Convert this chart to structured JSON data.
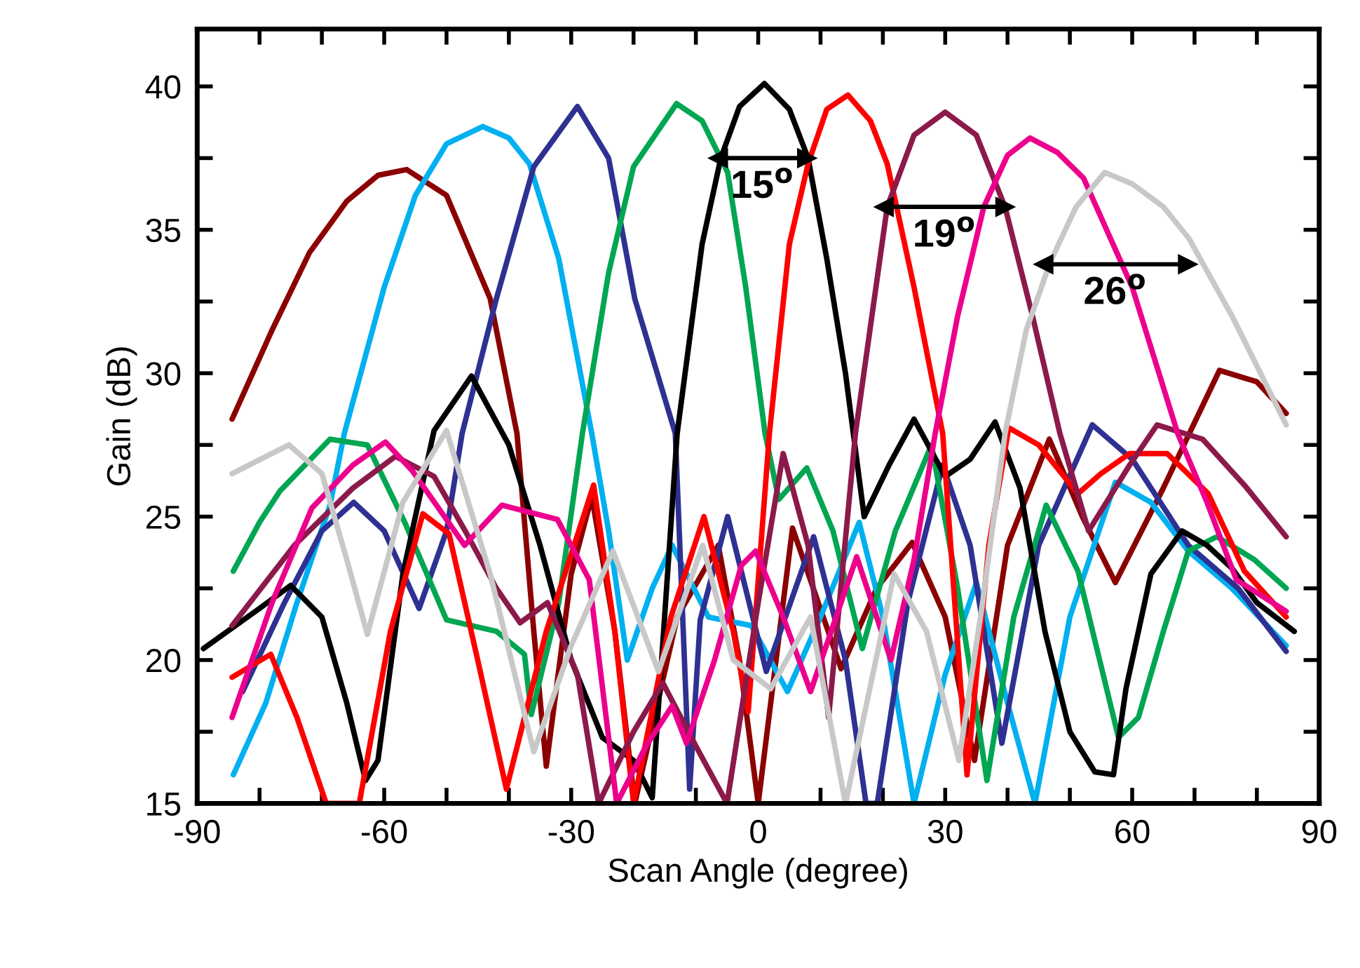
{
  "chart_data": {
    "type": "line",
    "xlabel": "Scan Angle (degree)",
    "ylabel": "Gain (dB)",
    "xlim": [
      -90,
      90
    ],
    "ylim": [
      15,
      42
    ],
    "xticks": [
      -90,
      {
        "value": -80,
        "label": null
      },
      {
        "value": -70,
        "label": null
      },
      -60,
      {
        "value": -50,
        "label": null
      },
      {
        "value": -40,
        "label": null
      },
      -30,
      {
        "value": -20,
        "label": null
      },
      {
        "value": -10,
        "label": null
      },
      0,
      {
        "value": 10,
        "label": null
      },
      {
        "value": 20,
        "label": null
      },
      30,
      {
        "value": 40,
        "label": null
      },
      {
        "value": 50,
        "label": null
      },
      60,
      {
        "value": 70,
        "label": null
      },
      {
        "value": 80,
        "label": null
      },
      90
    ],
    "yticks": [
      15,
      {
        "value": 17.5,
        "label": null
      },
      20,
      {
        "value": 22.5,
        "label": null
      },
      25,
      {
        "value": 27.5,
        "label": null
      },
      30,
      {
        "value": 32.5,
        "label": null
      },
      35,
      {
        "value": 37.5,
        "label": null
      },
      40
    ],
    "grid": false,
    "legend": false,
    "marker": "none",
    "line_style": "solid",
    "series": [
      {
        "color": "#8b0000",
        "x": [
          -84.4,
          -78,
          -72,
          -66,
          -61,
          -56.4,
          -50,
          -43,
          -38.7,
          -36,
          -34,
          -30,
          -26.7,
          -23,
          -19.8,
          -13,
          -6.4,
          -3,
          0,
          5.5,
          13.3,
          19,
          24.7,
          30,
          34.7,
          40,
          46.7,
          52,
          57.3,
          65,
          74,
          80,
          84.7
        ],
        "values": [
          28.4,
          31.5,
          34.2,
          36,
          36.9,
          37.1,
          36.2,
          32.6,
          27.9,
          21,
          16.3,
          23,
          25.7,
          21,
          15,
          21.5,
          24,
          20,
          15,
          24.6,
          19.7,
          22.5,
          24.1,
          21.5,
          16.5,
          24,
          27.7,
          25,
          22.7,
          26,
          30.1,
          29.7,
          28.6
        ]
      },
      {
        "color": "#00b0f0",
        "x": [
          -84.2,
          -79,
          -74,
          -68.7,
          -66.4,
          -60,
          -55,
          -50,
          -44.2,
          -40,
          -36.7,
          -32,
          -26.7,
          -24,
          -21,
          -17,
          -13.8,
          -8,
          -1.1,
          4.7,
          10,
          16.2,
          20,
          25,
          30,
          35,
          40,
          44.4,
          50,
          57.3,
          63,
          69,
          76,
          84.7
        ],
        "values": [
          16,
          18.5,
          22,
          25.4,
          27.9,
          33,
          36.2,
          38,
          38.6,
          38.2,
          37.3,
          34,
          27.9,
          24.5,
          20,
          22.5,
          24,
          21.5,
          21.2,
          18.9,
          21.5,
          24.8,
          21.5,
          15,
          19.5,
          22.7,
          18.5,
          15,
          21.5,
          26.2,
          25.5,
          23.8,
          22.5,
          20.5
        ]
      },
      {
        "color": "#2e3192",
        "x": [
          -82.7,
          -76,
          -70,
          -64.9,
          -60,
          -54.4,
          -50,
          -47.5,
          -42,
          -36,
          -29,
          -24,
          -19.8,
          -13.3,
          -11,
          -9.3,
          -4.9,
          1.3,
          8.9,
          14,
          17.3,
          19.1,
          24,
          29.6,
          34,
          39.1,
          45,
          53.6,
          60,
          69,
          77,
          84.7
        ],
        "values": [
          18.9,
          22,
          24.5,
          25.5,
          24.5,
          21.8,
          24.5,
          27.9,
          32.6,
          37.2,
          39.3,
          37.5,
          32.6,
          27.9,
          15.5,
          21.4,
          25,
          19.6,
          24.3,
          20,
          15,
          15,
          22,
          26.8,
          24,
          17.1,
          24,
          28.2,
          27,
          24,
          22.5,
          20.3
        ]
      },
      {
        "color": "#00a651",
        "x": [
          -84.2,
          -80,
          -76.7,
          -68.7,
          -62.7,
          -56.7,
          -50,
          -42,
          -37.5,
          -36.4,
          -32,
          -28.2,
          -24,
          -20,
          -13.1,
          -9,
          -4.9,
          -2,
          1.1,
          3.3,
          7.8,
          12,
          16.7,
          22,
          27.8,
          32,
          36.7,
          41,
          46.2,
          51.3,
          57.8,
          61,
          65,
          69,
          73.6,
          79.6,
          84.7
        ],
        "values": [
          23.1,
          24.8,
          25.9,
          27.7,
          27.5,
          24.8,
          21.4,
          21,
          20.2,
          18.1,
          22,
          27.9,
          33.5,
          37.2,
          39.4,
          38.8,
          37,
          33,
          27.9,
          25.6,
          26.7,
          24.5,
          20.4,
          24.5,
          27.5,
          22.5,
          15.8,
          21.5,
          25.4,
          23.1,
          17.3,
          18,
          21,
          23.8,
          24.3,
          23.5,
          22.5
        ]
      },
      {
        "color": "#000000",
        "x": [
          -89,
          -80,
          -75,
          -70,
          -66,
          -63,
          -61,
          -57,
          -52,
          -46,
          -40,
          -35,
          -30,
          -25,
          -20,
          -17,
          -13,
          -9,
          -6,
          -3,
          1,
          5,
          8,
          11,
          14,
          17,
          21,
          25,
          30,
          34,
          38,
          42,
          46,
          50,
          54,
          57,
          59,
          63,
          68,
          72,
          76,
          80,
          86
        ],
        "values": [
          20.4,
          21.8,
          22.6,
          21.5,
          18.5,
          15.8,
          16.5,
          23,
          28,
          29.9,
          27.5,
          24,
          20,
          17.3,
          16.5,
          15.2,
          27.9,
          34.5,
          37.5,
          39.3,
          40.1,
          39.2,
          37.5,
          34,
          30,
          25,
          26.8,
          28.4,
          26.4,
          27,
          28.3,
          26,
          21,
          17.5,
          16.1,
          16,
          19,
          23,
          24.5,
          24,
          23.2,
          22,
          21
        ]
      },
      {
        "color": "#ff0000",
        "x": [
          -84.4,
          -78.2,
          -74,
          -69.3,
          -64,
          -59,
          -53.8,
          -49.6,
          -45,
          -40.4,
          -34,
          -26.4,
          -23,
          -20,
          -14,
          -8.7,
          -4,
          -1.6,
          1.8,
          5,
          8,
          11,
          14.4,
          18,
          20.7,
          25,
          29.6,
          33.5,
          37,
          40.2,
          45,
          51.3,
          55,
          59.6,
          65.6,
          72.2,
          78,
          84.7
        ],
        "values": [
          19.4,
          20.2,
          18,
          15,
          15,
          21,
          25.1,
          24.4,
          20,
          15.5,
          21,
          26.1,
          21,
          15,
          21.5,
          25,
          21,
          18.2,
          27.9,
          34.5,
          37.3,
          39.2,
          39.7,
          38.8,
          37.3,
          33,
          27.9,
          16,
          24,
          28.1,
          27.5,
          25.8,
          26.5,
          27.2,
          27.2,
          25.8,
          23.1,
          21.5
        ]
      },
      {
        "color": "#8b1a4a",
        "x": [
          -84.4,
          -74.4,
          -65,
          -58.2,
          -52,
          -47,
          -42,
          -38.2,
          -33.8,
          -29,
          -25.6,
          -20,
          -15.3,
          -10,
          -5,
          0,
          4,
          8,
          11.3,
          15.6,
          20.7,
          25,
          30,
          35,
          39.6,
          44,
          48.4,
          53,
          59.6,
          64,
          71.3,
          78,
          84.7
        ],
        "values": [
          21.2,
          24,
          26,
          27.1,
          26.4,
          24.5,
          22.5,
          21.3,
          22,
          19.5,
          15,
          17.5,
          19.2,
          17,
          15,
          22,
          27.2,
          24,
          18,
          27.9,
          35.8,
          38.3,
          39.1,
          38.3,
          35.8,
          32,
          27.9,
          24.5,
          26.8,
          28.2,
          27.7,
          26.1,
          24.3
        ]
      },
      {
        "color": "#ec008c",
        "x": [
          -84.4,
          -78,
          -71.6,
          -65,
          -59.8,
          -55.5,
          -47.1,
          -41.1,
          -32.2,
          -27.1,
          -22.7,
          -18,
          -13.8,
          -11.5,
          -7,
          -2.7,
          -0.4,
          4,
          8.4,
          15.8,
          21.3,
          25,
          28.4,
          32,
          36.2,
          40,
          43.6,
          48,
          52.2,
          60,
          67.3,
          72,
          76.7,
          84.7
        ],
        "values": [
          18,
          22,
          25.3,
          26.8,
          27.6,
          26.6,
          24,
          25.4,
          24.9,
          22.8,
          15,
          17,
          18.4,
          17.1,
          20,
          23.3,
          23.8,
          21.5,
          18.9,
          23.6,
          20,
          23.5,
          27.9,
          32,
          35.8,
          37.6,
          38.2,
          37.7,
          36.8,
          33,
          27.9,
          25.5,
          22.8,
          21.7
        ]
      },
      {
        "color": "#c8c8c8",
        "x": [
          -84.4,
          -75.3,
          -70,
          -66,
          -62.7,
          -57,
          -50,
          -43,
          -36,
          -30,
          -23.3,
          -16,
          -8.9,
          -4,
          2,
          8.4,
          14,
          21.8,
          27,
          32.2,
          36,
          39.6,
          43,
          46.9,
          51,
          55.6,
          60,
          65,
          69.1,
          76,
          84.7
        ],
        "values": [
          26.5,
          27.5,
          26.5,
          23.5,
          20.9,
          25.5,
          28,
          23,
          16.8,
          20.5,
          23.8,
          19.6,
          24,
          20,
          19,
          21.5,
          15,
          23,
          21,
          16.5,
          22,
          27.9,
          31.5,
          33.9,
          35.8,
          37,
          36.6,
          35.8,
          34.7,
          32,
          28.2
        ]
      },
      {
        "color": "#000000",
        "marker": "triangle",
        "x": [
          -6.4,
          7.8
        ],
        "values": [
          37.5,
          37.5
        ]
      },
      {
        "color": "#000000",
        "marker": "triangle",
        "x": [
          20.2,
          39.6
        ],
        "values": [
          35.8,
          35.8
        ]
      },
      {
        "color": "#000000",
        "marker": "triangle",
        "x": [
          45.8,
          68.9
        ],
        "values": [
          33.8,
          33.8
        ]
      }
    ],
    "annotations": [
      {
        "text": "15$^{o}$",
        "x": 0.7,
        "y": 37.5
      },
      {
        "text": "19$^{o}$",
        "x": 29.9,
        "y": 35.8
      },
      {
        "text": "26$^{o}$",
        "x": 57.3,
        "y": 33.8
      }
    ]
  }
}
